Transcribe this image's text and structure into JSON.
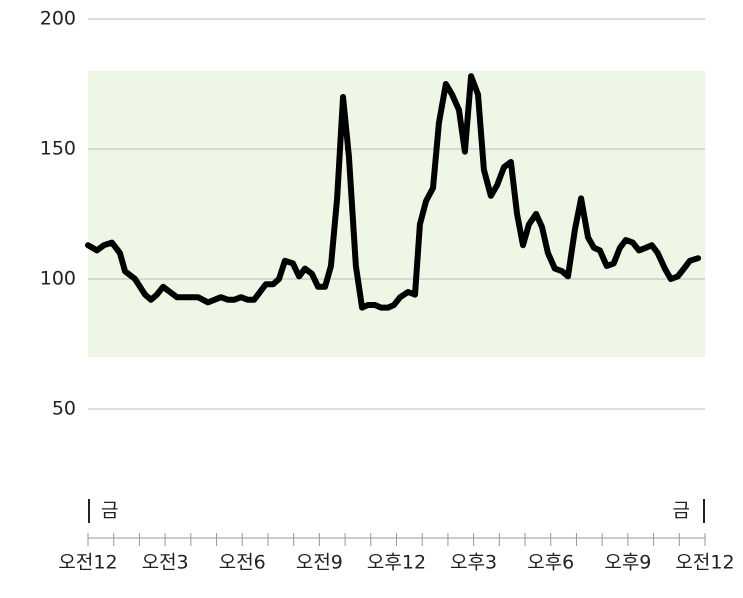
{
  "chart_data": {
    "type": "line",
    "x": [
      0,
      0.35,
      0.62,
      0.93,
      1.24,
      1.44,
      1.83,
      2.22,
      2.45,
      2.68,
      2.92,
      3.19,
      3.46,
      3.97,
      4.28,
      4.67,
      5.17,
      5.45,
      5.68,
      5.95,
      6.22,
      6.46,
      6.92,
      7.2,
      7.43,
      7.66,
      7.97,
      8.21,
      8.44,
      8.71,
      8.95,
      9.22,
      9.45,
      9.69,
      9.92,
      10.15,
      10.42,
      10.66,
      10.89,
      11.16,
      11.4,
      11.67,
      11.9,
      12.14,
      12.45,
      12.72,
      12.91,
      13.15,
      13.42,
      13.65,
      13.92,
      14.16,
      14.43,
      14.66,
      14.9,
      15.17,
      15.4,
      15.67,
      15.91,
      16.18,
      16.45,
      16.69,
      16.92,
      17.15,
      17.43,
      17.66,
      17.89,
      18.16,
      18.44,
      18.67,
      18.94,
      19.18,
      19.45,
      19.68,
      19.91,
      20.18,
      20.45,
      20.69,
      20.92,
      21.19,
      21.43,
      21.7,
      21.93,
      22.16,
      22.44,
      22.67,
      22.94,
      23.18,
      23.41,
      23.73
    ],
    "series": [
      {
        "color": "#000000",
        "values": [
          113,
          111,
          113,
          114,
          110,
          103,
          100,
          94,
          92,
          94,
          97,
          95,
          93,
          93,
          93,
          91,
          93,
          92,
          92,
          93,
          92,
          92,
          98,
          98,
          100,
          107,
          106,
          101,
          104,
          102,
          97,
          97,
          105,
          131,
          170,
          147,
          105,
          89,
          90,
          90,
          89,
          89,
          90,
          93,
          95,
          94,
          121,
          130,
          135,
          160,
          175,
          171,
          165,
          149,
          178,
          171,
          142,
          132,
          136,
          143,
          145,
          125,
          113,
          121,
          125,
          120,
          110,
          104,
          103,
          101,
          119,
          131,
          116,
          112,
          111,
          105,
          106,
          112,
          115,
          114,
          111,
          112,
          113,
          110,
          104,
          100,
          101,
          104,
          107,
          108
        ]
      }
    ],
    "band": [
      70,
      180
    ],
    "band_color": "#eef6e5",
    "ylim": [
      50,
      200
    ],
    "yticks": [
      50,
      100,
      150,
      200
    ],
    "grid": true,
    "xlim": [
      0,
      24
    ],
    "xticks": [
      {
        "value": 0,
        "label": "오전12"
      },
      {
        "value": 3,
        "label": "오전3"
      },
      {
        "value": 6,
        "label": "오전6"
      },
      {
        "value": 9,
        "label": "오전9"
      },
      {
        "value": 12,
        "label": "오후12"
      },
      {
        "value": 15,
        "label": "오후3"
      },
      {
        "value": 18,
        "label": "오후6"
      },
      {
        "value": 21,
        "label": "오후9"
      },
      {
        "value": 24,
        "label": "오전12"
      }
    ],
    "xminorticks": [
      0,
      1,
      2,
      3,
      4,
      5,
      6,
      7,
      8,
      9,
      10,
      11,
      12,
      13,
      14,
      15,
      16,
      17,
      18,
      19,
      20,
      21,
      22,
      23,
      24
    ],
    "start_label": "금",
    "end_label": "금"
  }
}
